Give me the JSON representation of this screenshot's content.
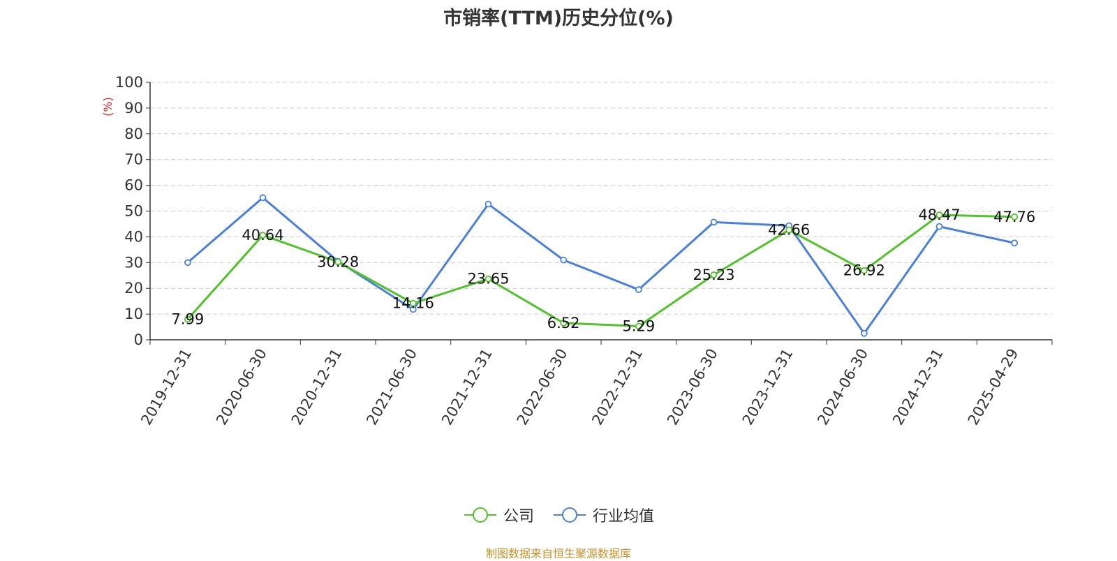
{
  "chart_data": {
    "type": "line",
    "title": "市销率(TTM)历史分位(%)",
    "ylabel": "(%)",
    "xlabel": "",
    "ylim": [
      0,
      100
    ],
    "yticks": [
      0,
      10,
      20,
      30,
      40,
      50,
      60,
      70,
      80,
      90,
      100
    ],
    "grid": true,
    "legend_position": "bottom-center",
    "categories": [
      "2019-12-31",
      "2020-06-30",
      "2020-12-31",
      "2021-06-30",
      "2021-12-31",
      "2022-06-30",
      "2022-12-31",
      "2023-06-30",
      "2023-12-31",
      "2024-06-30",
      "2024-12-31",
      "2025-04-29"
    ],
    "series": [
      {
        "name": "公司",
        "color": "#52c22b",
        "values": [
          7.99,
          40.64,
          30.28,
          14.16,
          23.65,
          6.52,
          5.29,
          25.23,
          42.66,
          26.92,
          48.47,
          47.76
        ],
        "labels": [
          "7.99",
          "40.64",
          "30.28",
          "14.16",
          "23.65",
          "6.52",
          "5.29",
          "25.23",
          "42.66",
          "26.92",
          "48.47",
          "47.76"
        ]
      },
      {
        "name": "行业均值",
        "color": "#4a80dc",
        "values": [
          30,
          55.2,
          30.5,
          11.8,
          52.7,
          31,
          19.5,
          45.7,
          44.3,
          2.5,
          44,
          37.6
        ]
      }
    ]
  },
  "source_note": "制图数据来自恒生聚源数据库",
  "colors": {
    "title": "#333333",
    "ylabel": "#e02020",
    "source": "#c8922a",
    "grid": "#cccccc",
    "axis": "#333333"
  }
}
